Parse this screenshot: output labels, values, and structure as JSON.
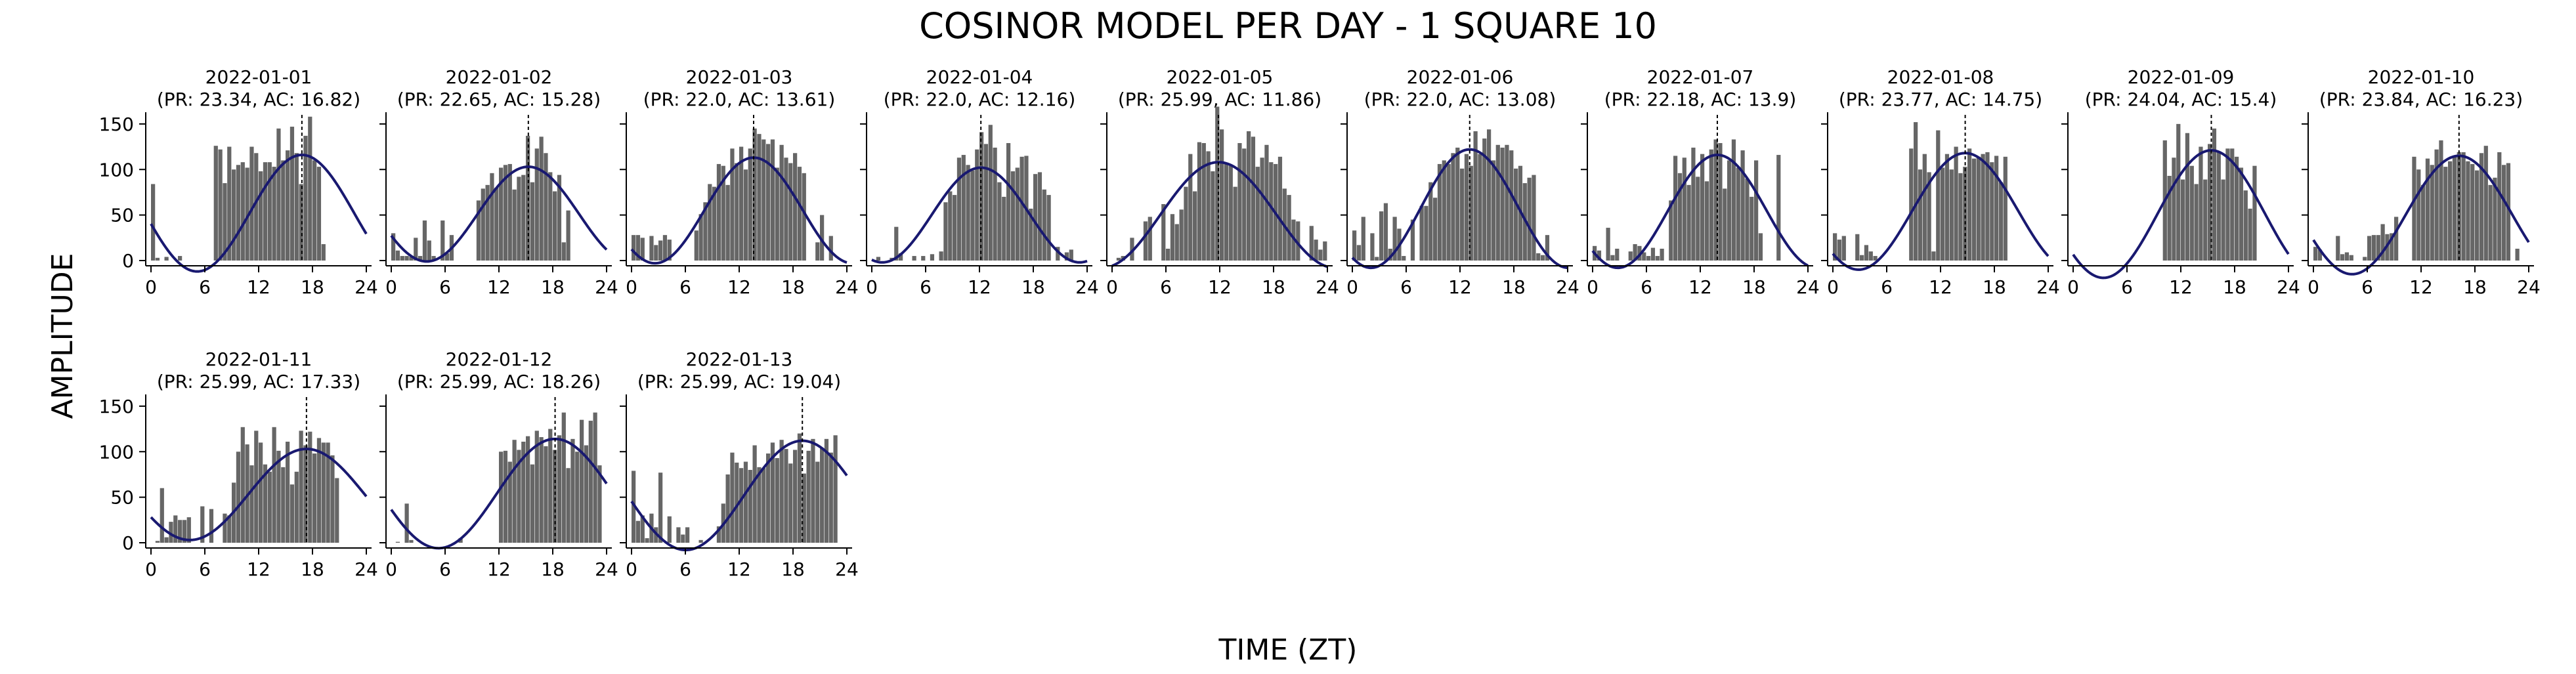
{
  "title": "COSINOR MODEL PER DAY - 1 SQUARE 10",
  "xlabel": "TIME (ZT)",
  "ylabel": "AMPLITUDE",
  "colors": {
    "bars": "#666666",
    "curve": "#191970",
    "acrophase_line": "#000000"
  },
  "chart_data": {
    "type": "bar",
    "xlim": [
      0,
      24
    ],
    "ylim": [
      0,
      160
    ],
    "xticks": [
      0,
      6,
      12,
      18,
      24
    ],
    "yticks": [
      0,
      50,
      100,
      150
    ],
    "grid": false,
    "bar_width_hours": 0.5,
    "days": [
      {
        "date": "2022-01-01",
        "subtitle": "(PR: 23.34, AC: 16.82)",
        "period": 23.34,
        "acrophase": 16.82,
        "mesor": 52,
        "amplitude": 64,
        "values": [
          84,
          3,
          0,
          4,
          0,
          0,
          5,
          0,
          0,
          0,
          0,
          0,
          0,
          0,
          126,
          122,
          85,
          125,
          100,
          105,
          108,
          102,
          125,
          118,
          98,
          108,
          108,
          103,
          145,
          110,
          121,
          147,
          118,
          84,
          137,
          158,
          110,
          103,
          18,
          0,
          0,
          0,
          0,
          0,
          0,
          0,
          0,
          0
        ]
      },
      {
        "date": "2022-01-02",
        "subtitle": "(PR: 22.65, AC: 15.28)",
        "period": 22.65,
        "acrophase": 15.28,
        "mesor": 51,
        "amplitude": 52,
        "values": [
          30,
          11,
          5,
          5,
          4,
          25,
          5,
          44,
          22,
          5,
          0,
          44,
          8,
          28,
          0,
          0,
          0,
          0,
          0,
          66,
          79,
          83,
          96,
          80,
          102,
          105,
          106,
          78,
          92,
          94,
          137,
          86,
          123,
          136,
          118,
          97,
          76,
          94,
          20,
          55,
          0,
          0,
          0,
          0,
          0,
          0,
          0,
          0
        ]
      },
      {
        "date": "2022-01-03",
        "subtitle": "(PR: 22.0, AC: 13.61)",
        "period": 22.0,
        "acrophase": 13.61,
        "mesor": 55,
        "amplitude": 58,
        "values": [
          28,
          28,
          25,
          0,
          27,
          17,
          22,
          28,
          23,
          0,
          0,
          0,
          0,
          0,
          33,
          51,
          64,
          84,
          81,
          106,
          104,
          83,
          123,
          107,
          125,
          100,
          123,
          145,
          139,
          133,
          128,
          133,
          102,
          127,
          113,
          107,
          118,
          103,
          96,
          0,
          0,
          20,
          50,
          0,
          27,
          0,
          0,
          0
        ]
      },
      {
        "date": "2022-01-04",
        "subtitle": "(PR: 22.0, AC: 12.16)",
        "period": 22.0,
        "acrophase": 12.16,
        "mesor": 50,
        "amplitude": 52,
        "values": [
          0,
          4,
          0,
          0,
          3,
          37,
          8,
          0,
          0,
          5,
          0,
          5,
          0,
          7,
          0,
          10,
          64,
          76,
          72,
          113,
          116,
          105,
          99,
          122,
          141,
          128,
          149,
          124,
          86,
          70,
          129,
          98,
          102,
          114,
          115,
          57,
          95,
          97,
          78,
          72,
          0,
          15,
          0,
          9,
          12,
          0,
          0,
          0
        ]
      },
      {
        "date": "2022-01-05",
        "subtitle": "(PR: 25.99, AC: 11.86)",
        "period": 25.99,
        "acrophase": 11.86,
        "mesor": 50,
        "amplitude": 58,
        "values": [
          0,
          3,
          5,
          0,
          25,
          0,
          0,
          43,
          48,
          0,
          0,
          62,
          13,
          51,
          40,
          56,
          81,
          117,
          76,
          130,
          129,
          120,
          98,
          169,
          144,
          107,
          104,
          81,
          129,
          123,
          142,
          136,
          103,
          113,
          127,
          108,
          106,
          114,
          79,
          72,
          45,
          43,
          0,
          0,
          38,
          23,
          12,
          21
        ]
      },
      {
        "date": "2022-01-06",
        "subtitle": "(PR: 22.0, AC: 13.08)",
        "period": 22.0,
        "acrophase": 13.08,
        "mesor": 57,
        "amplitude": 65,
        "values": [
          33,
          17,
          48,
          0,
          30,
          4,
          54,
          63,
          13,
          48,
          35,
          5,
          0,
          45,
          0,
          60,
          60,
          86,
          69,
          106,
          110,
          106,
          118,
          124,
          101,
          117,
          104,
          142,
          117,
          134,
          144,
          110,
          127,
          124,
          127,
          121,
          101,
          104,
          85,
          91,
          94,
          8,
          6,
          28,
          0,
          0,
          0,
          0
        ]
      },
      {
        "date": "2022-01-07",
        "subtitle": "(PR: 22.18, AC: 13.9)",
        "period": 22.18,
        "acrophase": 13.9,
        "mesor": 54,
        "amplitude": 62,
        "values": [
          16,
          11,
          0,
          36,
          6,
          13,
          0,
          0,
          10,
          18,
          16,
          9,
          5,
          14,
          5,
          13,
          0,
          66,
          115,
          96,
          113,
          83,
          124,
          92,
          117,
          87,
          122,
          133,
          129,
          79,
          110,
          133,
          102,
          121,
          90,
          70,
          110,
          30,
          0,
          0,
          0,
          116,
          0,
          0,
          0,
          0,
          0,
          0
        ]
      },
      {
        "date": "2022-01-08",
        "subtitle": "(PR: 23.77, AC: 14.75)",
        "period": 23.77,
        "acrophase": 14.75,
        "mesor": 54,
        "amplitude": 64,
        "values": [
          30,
          23,
          27,
          0,
          0,
          29,
          6,
          17,
          10,
          5,
          0,
          0,
          0,
          0,
          0,
          0,
          0,
          123,
          152,
          100,
          117,
          97,
          10,
          143,
          102,
          117,
          100,
          125,
          96,
          103,
          123,
          112,
          114,
          117,
          119,
          108,
          115,
          86,
          114,
          0,
          0,
          0,
          0,
          0,
          0,
          0,
          0,
          0
        ]
      },
      {
        "date": "2022-01-09",
        "subtitle": "(PR: 24.04, AC: 15.4)",
        "period": 24.04,
        "acrophase": 15.4,
        "mesor": 51,
        "amplitude": 70,
        "values": [
          0,
          0,
          0,
          0,
          0,
          0,
          0,
          0,
          0,
          0,
          0,
          0,
          0,
          0,
          0,
          0,
          0,
          0,
          0,
          0,
          132,
          93,
          113,
          150,
          89,
          140,
          104,
          84,
          125,
          89,
          128,
          145,
          120,
          89,
          123,
          123,
          114,
          102,
          77,
          57,
          104,
          0,
          0,
          0,
          0,
          0,
          0,
          0
        ]
      },
      {
        "date": "2022-01-10",
        "subtitle": "(PR: 23.84, AC: 16.23)",
        "period": 23.84,
        "acrophase": 16.23,
        "mesor": 50,
        "amplitude": 65,
        "values": [
          15,
          12,
          0,
          0,
          0,
          27,
          7,
          9,
          6,
          0,
          0,
          4,
          27,
          28,
          28,
          40,
          29,
          30,
          48,
          0,
          0,
          0,
          114,
          100,
          83,
          112,
          105,
          122,
          132,
          103,
          109,
          115,
          119,
          119,
          109,
          106,
          99,
          118,
          126,
          83,
          91,
          119,
          105,
          107,
          0,
          13,
          0,
          0
        ]
      },
      {
        "date": "2022-01-11",
        "subtitle": "(PR: 25.99, AC: 17.33)",
        "period": 25.99,
        "acrophase": 17.33,
        "mesor": 53,
        "amplitude": 50,
        "values": [
          0,
          2,
          60,
          6,
          23,
          30,
          25,
          25,
          28,
          0,
          0,
          40,
          0,
          37,
          0,
          0,
          32,
          30,
          66,
          100,
          127,
          108,
          85,
          123,
          110,
          86,
          78,
          127,
          101,
          83,
          111,
          64,
          78,
          123,
          107,
          122,
          98,
          115,
          110,
          110,
          96,
          71,
          0,
          0,
          0,
          0,
          0,
          0
        ]
      },
      {
        "date": "2022-01-12",
        "subtitle": "(PR: 25.99, AC: 18.26)",
        "period": 25.99,
        "acrophase": 18.26,
        "mesor": 54,
        "amplitude": 60,
        "values": [
          0,
          1,
          0,
          43,
          3,
          0,
          0,
          0,
          0,
          0,
          0,
          0,
          0,
          0,
          0,
          5,
          0,
          0,
          0,
          0,
          0,
          0,
          0,
          0,
          100,
          101,
          89,
          113,
          102,
          111,
          117,
          86,
          123,
          116,
          106,
          125,
          102,
          118,
          143,
          82,
          114,
          100,
          135,
          107,
          134,
          143,
          85,
          0
        ]
      },
      {
        "date": "2022-01-13",
        "subtitle": "(PR: 25.99, AC: 19.04)",
        "period": 25.99,
        "acrophase": 19.04,
        "mesor": 52,
        "amplitude": 60,
        "values": [
          79,
          24,
          30,
          5,
          32,
          17,
          77,
          0,
          29,
          0,
          17,
          9,
          17,
          0,
          0,
          3,
          0,
          0,
          0,
          18,
          43,
          75,
          99,
          88,
          82,
          89,
          80,
          107,
          83,
          82,
          98,
          110,
          93,
          113,
          103,
          87,
          102,
          120,
          76,
          101,
          114,
          89,
          104,
          114,
          99,
          118,
          0,
          0
        ]
      }
    ]
  }
}
